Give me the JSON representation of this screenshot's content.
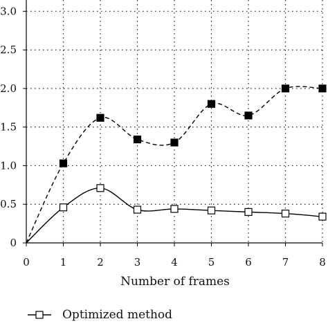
{
  "chart_data": {
    "type": "line",
    "title": "",
    "xlabel": "Number of frames",
    "ylabel": "",
    "xlim": [
      0,
      8
    ],
    "ylim": [
      0,
      3.2
    ],
    "x_ticks": [
      0,
      1,
      2,
      3,
      4,
      5,
      6,
      7,
      8
    ],
    "y_ticks": [
      0,
      0.5,
      1.0,
      1.5,
      2.0,
      2.5,
      3.0
    ],
    "x_tick_labels": [
      "0",
      "1",
      "2",
      "3",
      "4",
      "5",
      "6",
      "7",
      "8"
    ],
    "y_tick_labels": [
      "0",
      "0.5",
      "1.0",
      "1.5",
      "2.0",
      "2.5",
      "3.0"
    ],
    "grid": true,
    "legend_position": "bottom",
    "series": [
      {
        "name": "Optimized method",
        "style": "solid",
        "marker": "open-square",
        "color": "#000000",
        "x": [
          0,
          1,
          2,
          3,
          4,
          5,
          6,
          7,
          8
        ],
        "y": [
          0,
          0.46,
          0.71,
          0.43,
          0.44,
          0.42,
          0.4,
          0.38,
          0.34
        ]
      },
      {
        "style": "dashed",
        "marker": "filled-square",
        "color": "#000000",
        "x": [
          0,
          1,
          2,
          3,
          4,
          5,
          6,
          7,
          8
        ],
        "y": [
          0,
          1.03,
          1.62,
          1.34,
          1.3,
          1.8,
          1.65,
          2.0,
          2.0
        ]
      }
    ]
  }
}
